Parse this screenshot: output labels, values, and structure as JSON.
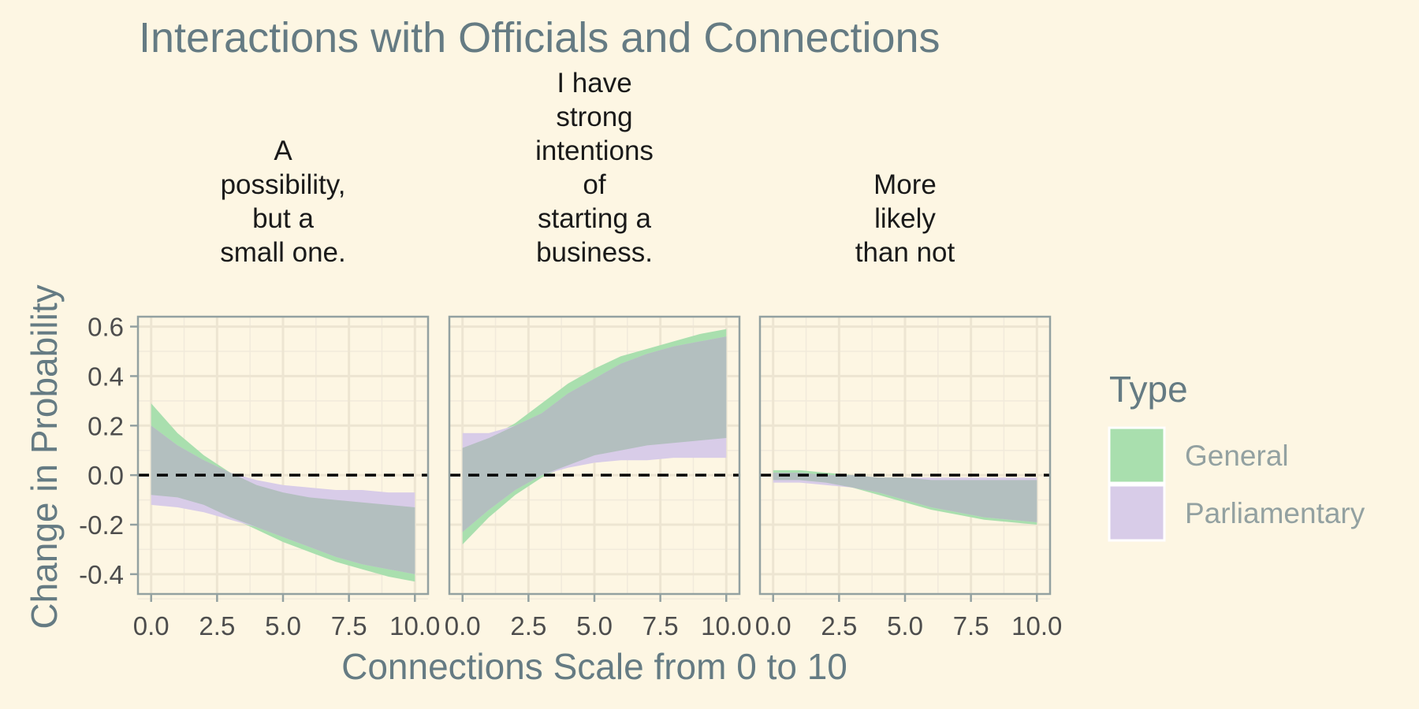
{
  "chart_data": {
    "type": "area",
    "title": "Interactions with Officials and Connections",
    "xlabel": "Connections Scale from 0 to 10",
    "ylabel": "Change in Probability",
    "xlim": [
      -0.5,
      10.5
    ],
    "ylim": [
      -0.48,
      0.64
    ],
    "x_ticks": [
      "0.0",
      "2.5",
      "5.0",
      "7.5",
      "10.0"
    ],
    "x_tick_values": [
      0,
      2.5,
      5,
      7.5,
      10
    ],
    "y_ticks": [
      "0.6",
      "0.4",
      "0.2",
      "0.0",
      "-0.2",
      "-0.4"
    ],
    "y_tick_values": [
      0.6,
      0.4,
      0.2,
      0,
      -0.2,
      -0.4
    ],
    "grid": true,
    "reference_line": {
      "y": 0,
      "style": "dashed"
    },
    "legend": {
      "title": "Type",
      "position": "right",
      "entries": [
        {
          "name": "General",
          "color": "#a9dfae"
        },
        {
          "name": "Parliamentary",
          "color": "#d8cce8"
        }
      ]
    },
    "overlap_color": "#b3bfbf",
    "x": [
      0,
      1,
      2,
      3,
      4,
      5,
      6,
      7,
      8,
      9,
      10
    ],
    "facets": [
      {
        "title": [
          "A",
          "possibility,",
          "but a",
          "small one."
        ],
        "series": [
          {
            "name": "General",
            "lower": [
              -0.08,
              -0.09,
              -0.12,
              -0.17,
              -0.22,
              -0.27,
              -0.31,
              -0.35,
              -0.38,
              -0.41,
              -0.43
            ],
            "upper": [
              0.29,
              0.17,
              0.08,
              0.01,
              -0.04,
              -0.07,
              -0.09,
              -0.1,
              -0.11,
              -0.12,
              -0.13
            ]
          },
          {
            "name": "Parliamentary",
            "lower": [
              -0.12,
              -0.13,
              -0.15,
              -0.18,
              -0.21,
              -0.25,
              -0.29,
              -0.33,
              -0.36,
              -0.38,
              -0.4
            ],
            "upper": [
              0.2,
              0.12,
              0.06,
              0.01,
              -0.02,
              -0.04,
              -0.05,
              -0.06,
              -0.06,
              -0.07,
              -0.07
            ]
          }
        ]
      },
      {
        "title": [
          "I have",
          "strong",
          "intentions",
          "of",
          "starting a",
          "business."
        ],
        "series": [
          {
            "name": "General",
            "lower": [
              -0.28,
              -0.17,
              -0.08,
              -0.01,
              0.04,
              0.08,
              0.1,
              0.12,
              0.13,
              0.14,
              0.15
            ],
            "upper": [
              0.11,
              0.15,
              0.21,
              0.29,
              0.37,
              0.43,
              0.48,
              0.51,
              0.54,
              0.57,
              0.59
            ]
          },
          {
            "name": "Parliamentary",
            "lower": [
              -0.23,
              -0.14,
              -0.06,
              0.0,
              0.03,
              0.05,
              0.06,
              0.06,
              0.07,
              0.07,
              0.07
            ],
            "upper": [
              0.17,
              0.17,
              0.2,
              0.25,
              0.33,
              0.39,
              0.45,
              0.49,
              0.52,
              0.54,
              0.56
            ]
          }
        ]
      },
      {
        "title": [
          "More",
          "likely",
          "than not"
        ],
        "series": [
          {
            "name": "General",
            "lower": [
              -0.02,
              -0.02,
              -0.03,
              -0.05,
              -0.08,
              -0.11,
              -0.14,
              -0.16,
              -0.18,
              -0.19,
              -0.2
            ],
            "upper": [
              0.02,
              0.02,
              0.01,
              0.0,
              -0.01,
              -0.01,
              -0.02,
              -0.02,
              -0.02,
              -0.02,
              -0.02
            ]
          },
          {
            "name": "Parliamentary",
            "lower": [
              -0.03,
              -0.03,
              -0.04,
              -0.05,
              -0.07,
              -0.1,
              -0.13,
              -0.15,
              -0.17,
              -0.18,
              -0.19
            ],
            "upper": [
              0.01,
              0.01,
              0.0,
              0.0,
              -0.01,
              -0.01,
              -0.01,
              -0.01,
              -0.01,
              -0.01,
              -0.01
            ]
          }
        ]
      }
    ]
  }
}
